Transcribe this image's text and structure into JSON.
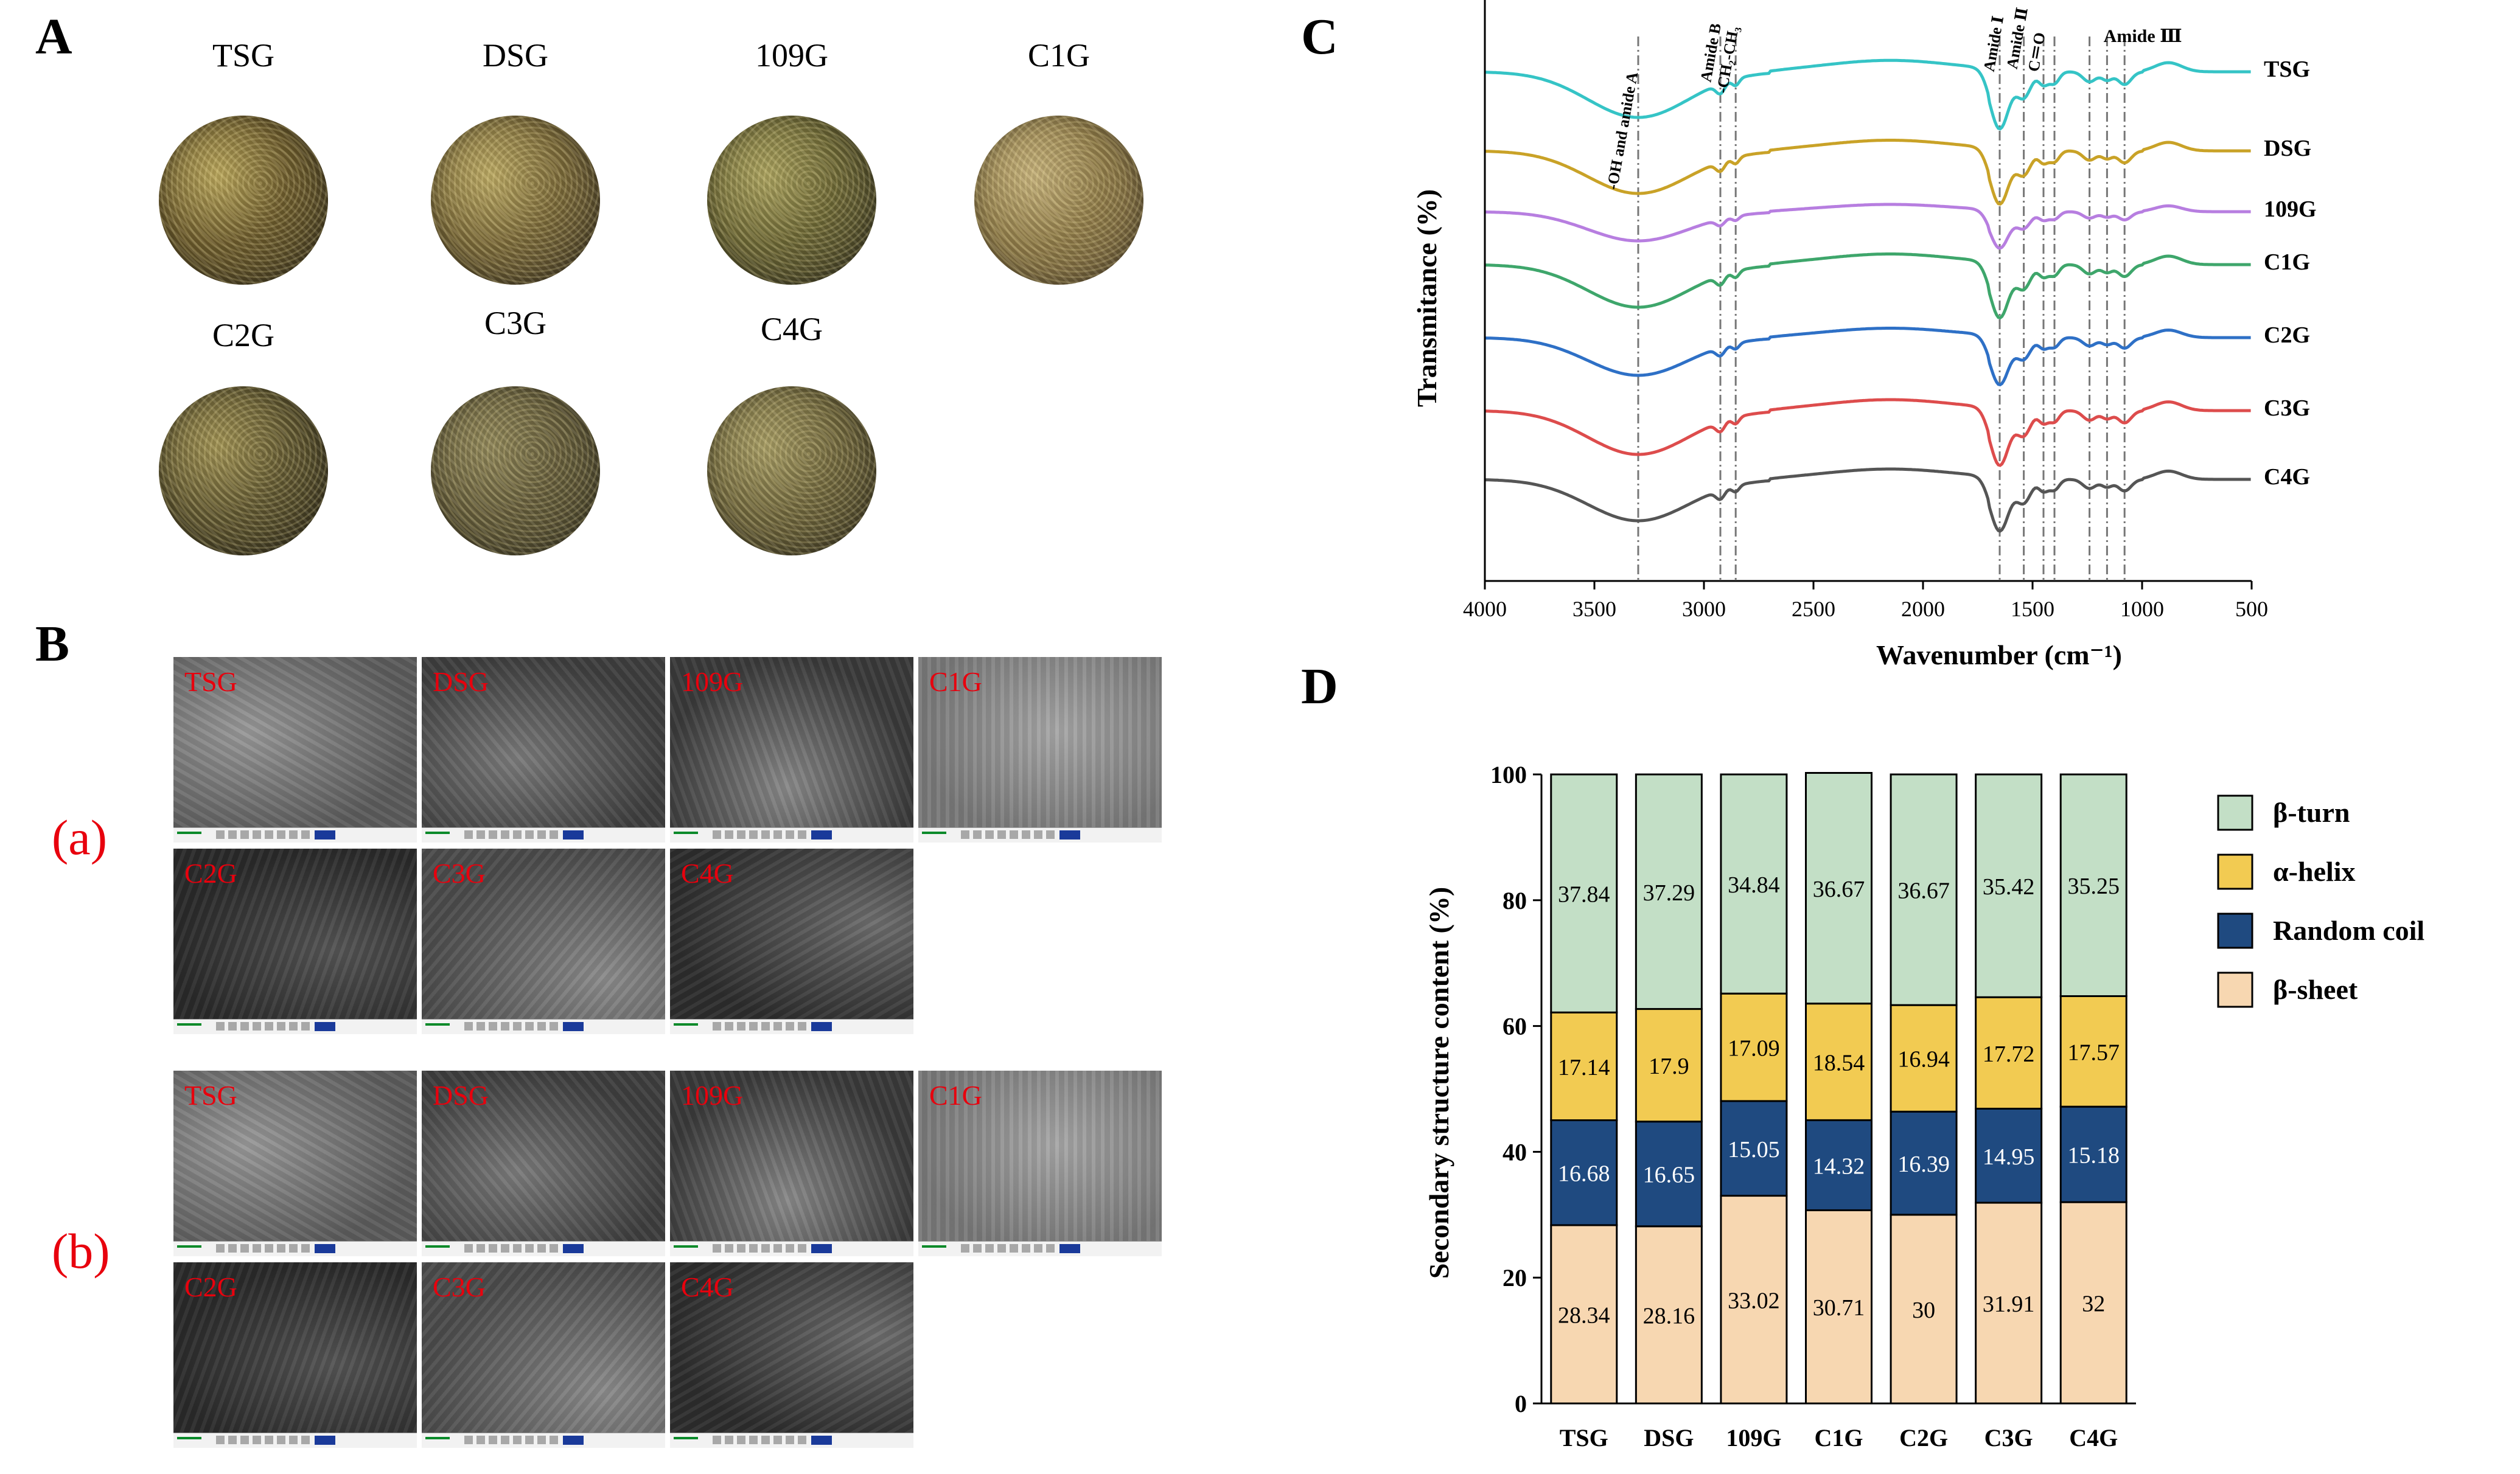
{
  "panel_letters": {
    "a": "A",
    "b": "B",
    "c": "C",
    "d": "D"
  },
  "samples": [
    "TSG",
    "DSG",
    "109G",
    "C1G",
    "C2G",
    "C3G",
    "C4G"
  ],
  "panel_b": {
    "rows": [
      {
        "label": "(a)",
        "tiles": [
          "TSG",
          "DSG",
          "109G",
          "C1G",
          "C2G",
          "C3G",
          "C4G"
        ]
      },
      {
        "label": "(b)",
        "tiles": [
          "TSG",
          "DSG",
          "109G",
          "C1G",
          "C2G",
          "C3G",
          "C4G"
        ]
      }
    ]
  },
  "colors": {
    "teal": "#35c4c6",
    "gold": "#c9a227",
    "lavender": "#b77ee0",
    "green": "#3ea66b",
    "blue": "#2e70c6",
    "red": "#dd4c4c",
    "gray": "#555555",
    "beta_turn": "#c3dfc6",
    "alpha_helix": "#f2cb52",
    "random_coil": "#1f4a80",
    "beta_sheet": "#f7d7b1"
  },
  "chart_data": [
    {
      "type": "line",
      "panel": "C",
      "xlabel": "Wavenumber (cm⁻¹)",
      "ylabel": "Transmitance (%)",
      "xlim": [
        4000,
        500
      ],
      "x_reversed": true,
      "xticks": [
        4000,
        3500,
        3000,
        2500,
        2000,
        1500,
        1000,
        500
      ],
      "series": [
        {
          "name": "TSG",
          "color": "#35c4c6"
        },
        {
          "name": "DSG",
          "color": "#c9a227"
        },
        {
          "name": "109G",
          "color": "#b77ee0"
        },
        {
          "name": "C1G",
          "color": "#3ea66b"
        },
        {
          "name": "C2G",
          "color": "#2e70c6"
        },
        {
          "name": "C3G",
          "color": "#dd4c4c"
        },
        {
          "name": "C4G",
          "color": "#555555"
        }
      ],
      "reference_lines": [
        3300,
        2925,
        2855,
        1650,
        1540,
        1450,
        1400,
        1240,
        1160,
        1080
      ],
      "annotations": [
        "-OH and amide A",
        "Amide B",
        "-CH₂-CH₃",
        "Amide Ⅰ",
        "Amide Ⅱ",
        "C＝O",
        "Amide Ⅲ"
      ]
    },
    {
      "type": "bar",
      "stacked": true,
      "panel": "D",
      "categories": [
        "TSG",
        "DSG",
        "109G",
        "C1G",
        "C2G",
        "C3G",
        "C4G"
      ],
      "ylabel": "Secondary structure content (%)",
      "ylim": [
        0,
        100
      ],
      "yticks": [
        0,
        20,
        40,
        60,
        80,
        100
      ],
      "legend_position": "right",
      "series": [
        {
          "name": "β-sheet",
          "color": "#f7d7b1",
          "values": [
            28.34,
            28.16,
            33.02,
            30.71,
            30,
            31.91,
            32
          ]
        },
        {
          "name": "Random coil",
          "color": "#1f4a80",
          "values": [
            16.68,
            16.65,
            15.05,
            14.32,
            16.39,
            14.95,
            15.18
          ]
        },
        {
          "name": "α-helix",
          "color": "#f2cb52",
          "values": [
            17.14,
            17.9,
            17.09,
            18.54,
            16.94,
            17.72,
            17.57
          ]
        },
        {
          "name": "β-turn",
          "color": "#c3dfc6",
          "values": [
            37.84,
            37.29,
            34.84,
            36.67,
            36.67,
            35.42,
            35.25
          ]
        }
      ]
    }
  ]
}
